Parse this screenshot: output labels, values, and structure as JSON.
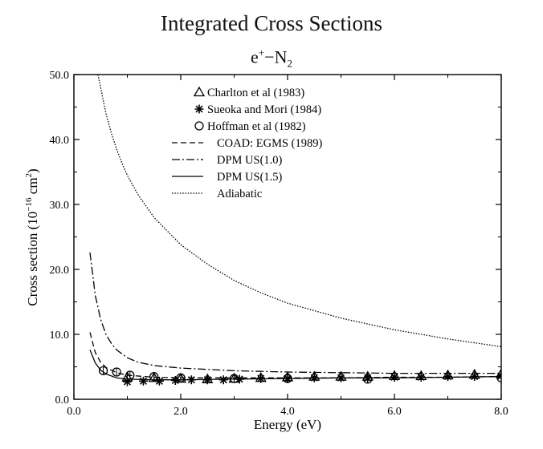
{
  "header": {
    "title": "Integrated Cross Sections",
    "subtitle_base": "e",
    "subtitle_sup": "+",
    "subtitle_mid": "−N",
    "subtitle_sub": "2"
  },
  "chart_data": {
    "type": "line",
    "xlabel": "Energy (eV)",
    "ylabel_main": "Cross section (10",
    "ylabel_exp": "−16",
    "ylabel_unit": " cm",
    "ylabel_unit_exp": "2",
    "ylabel_close": ")",
    "xlim": [
      0,
      8
    ],
    "ylim": [
      0,
      50
    ],
    "x_ticks": [
      0,
      2,
      4,
      6,
      8
    ],
    "x_tick_labels": [
      "0.0",
      "2.0",
      "4.0",
      "6.0",
      "8.0"
    ],
    "y_ticks": [
      0,
      10,
      20,
      30,
      40,
      50
    ],
    "y_tick_labels": [
      "0.0",
      "10.0",
      "20.0",
      "30.0",
      "40.0",
      "50.0"
    ],
    "grid": false,
    "legend_position": "top-center",
    "series": [
      {
        "name": "Charlton et al (1983)",
        "kind": "points",
        "marker": "triangle",
        "x": [
          1.0,
          1.5,
          2.0,
          2.5,
          3.0,
          3.5,
          4.0,
          4.5,
          5.0,
          5.5,
          6.0,
          6.5,
          7.0,
          7.5,
          8.0
        ],
        "y": [
          3.4,
          3.3,
          3.2,
          3.1,
          3.2,
          3.3,
          3.4,
          3.5,
          3.5,
          3.5,
          3.6,
          3.6,
          3.7,
          3.8,
          3.9
        ]
      },
      {
        "name": "Sueoka and Mori (1984)",
        "kind": "points",
        "marker": "asterisk",
        "x": [
          1.0,
          1.3,
          1.6,
          1.9,
          2.2,
          2.5,
          2.8,
          3.1,
          3.5,
          4.0,
          4.5,
          5.0,
          5.5,
          6.0,
          6.5,
          7.0,
          7.5,
          8.0
        ],
        "y": [
          2.7,
          2.8,
          2.8,
          2.9,
          3.0,
          3.0,
          3.0,
          3.1,
          3.2,
          3.2,
          3.3,
          3.3,
          3.3,
          3.4,
          3.4,
          3.5,
          3.5,
          3.6
        ]
      },
      {
        "name": "Hoffman et al (1982)",
        "kind": "points",
        "marker": "circle",
        "x": [
          0.55,
          0.8,
          1.05,
          1.5,
          2.0,
          3.0,
          4.0,
          5.5,
          8.0
        ],
        "y": [
          4.4,
          4.2,
          3.7,
          3.5,
          3.3,
          3.2,
          3.2,
          3.1,
          3.3
        ]
      },
      {
        "name": "COAD: EGMS (1989)",
        "kind": "line",
        "dash": "7,4",
        "x": [
          0.3,
          0.4,
          0.5,
          0.6,
          0.8,
          1.0,
          1.5,
          2.0,
          3.0,
          4.0,
          5.0,
          6.0,
          7.0,
          8.0
        ],
        "y": [
          10.3,
          7.2,
          5.7,
          4.9,
          4.1,
          3.7,
          3.4,
          3.3,
          3.3,
          3.3,
          3.3,
          3.4,
          3.4,
          3.5
        ]
      },
      {
        "name": "DPM US(1.0)",
        "kind": "line",
        "dash": "10,3,2,3",
        "x": [
          0.3,
          0.4,
          0.5,
          0.6,
          0.7,
          0.8,
          1.0,
          1.2,
          1.5,
          2.0,
          2.5,
          3.0,
          4.0,
          5.0,
          6.0,
          7.0,
          8.0
        ],
        "y": [
          22.6,
          16.0,
          12.3,
          10.0,
          8.6,
          7.6,
          6.4,
          5.7,
          5.2,
          4.8,
          4.6,
          4.4,
          4.2,
          4.1,
          4.0,
          4.0,
          4.0
        ]
      },
      {
        "name": "DPM US(1.5)",
        "kind": "line",
        "dash": "",
        "x": [
          0.3,
          0.4,
          0.5,
          0.6,
          0.8,
          1.0,
          1.5,
          2.0,
          3.0,
          4.0,
          5.0,
          6.0,
          7.0,
          8.0
        ],
        "y": [
          7.6,
          5.6,
          4.5,
          3.9,
          3.3,
          3.1,
          3.0,
          3.0,
          3.1,
          3.2,
          3.3,
          3.3,
          3.4,
          3.5
        ]
      },
      {
        "name": "Adiabatic",
        "kind": "line",
        "dash": "1.5,1.8",
        "x": [
          0.45,
          0.5,
          0.6,
          0.7,
          0.8,
          0.9,
          1.0,
          1.2,
          1.5,
          2.0,
          2.5,
          3.0,
          3.5,
          4.0,
          5.0,
          6.0,
          7.0,
          8.0
        ],
        "y": [
          50.0,
          48.0,
          44.0,
          41.0,
          38.5,
          36.4,
          34.5,
          31.5,
          28.0,
          23.8,
          20.8,
          18.3,
          16.4,
          14.8,
          12.5,
          10.7,
          9.3,
          8.1
        ]
      }
    ]
  }
}
